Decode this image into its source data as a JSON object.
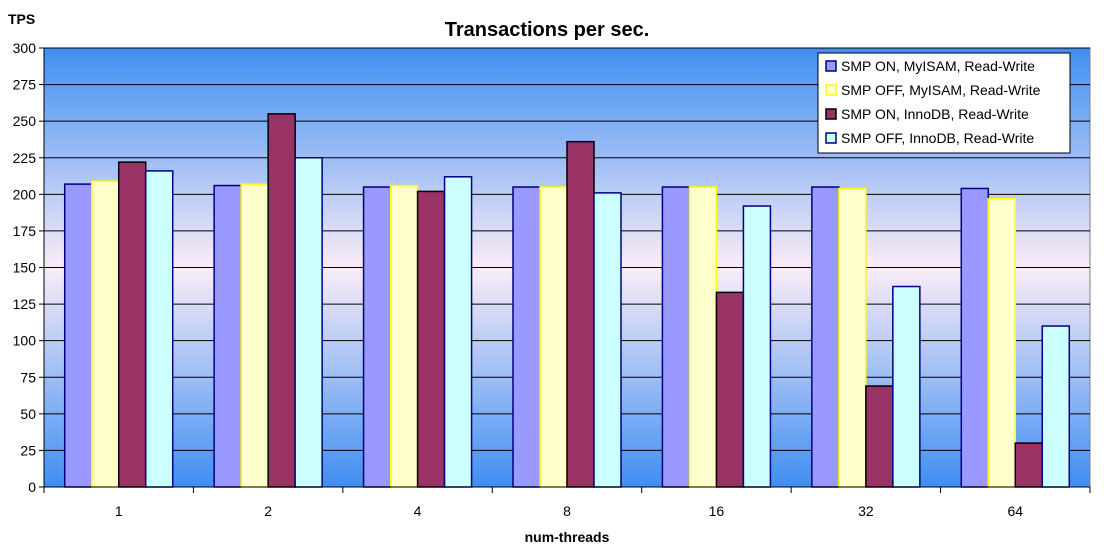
{
  "chart_data": {
    "type": "bar",
    "title": "Transactions per sec.",
    "xlabel": "num-threads",
    "ylabel": "TPS",
    "ylim": [
      0,
      300
    ],
    "yticks": [
      0,
      25,
      50,
      75,
      100,
      125,
      150,
      175,
      200,
      225,
      250,
      275,
      300
    ],
    "grid": true,
    "legend_position": "top-right",
    "categories": [
      "1",
      "2",
      "4",
      "8",
      "16",
      "32",
      "64"
    ],
    "series": [
      {
        "name": "SMP ON, MyISAM, Read-Write",
        "color": "#9999ff",
        "values": [
          207,
          206,
          205,
          205,
          205,
          205,
          204
        ]
      },
      {
        "name": "SMP OFF, MyISAM, Read-Write",
        "color": "#ffffcc",
        "values": [
          209,
          207,
          206,
          205,
          205,
          204,
          197
        ]
      },
      {
        "name": "SMP ON, InnoDB, Read-Write",
        "color": "#993366",
        "values": [
          222,
          255,
          202,
          236,
          133,
          69,
          30
        ]
      },
      {
        "name": "SMP OFF, InnoDB, Read-Write",
        "color": "#ccffff",
        "values": [
          216,
          225,
          212,
          201,
          192,
          137,
          110
        ]
      }
    ],
    "border_colors": [
      "#000080",
      "#ffff00",
      "#000000",
      "#000080"
    ]
  }
}
